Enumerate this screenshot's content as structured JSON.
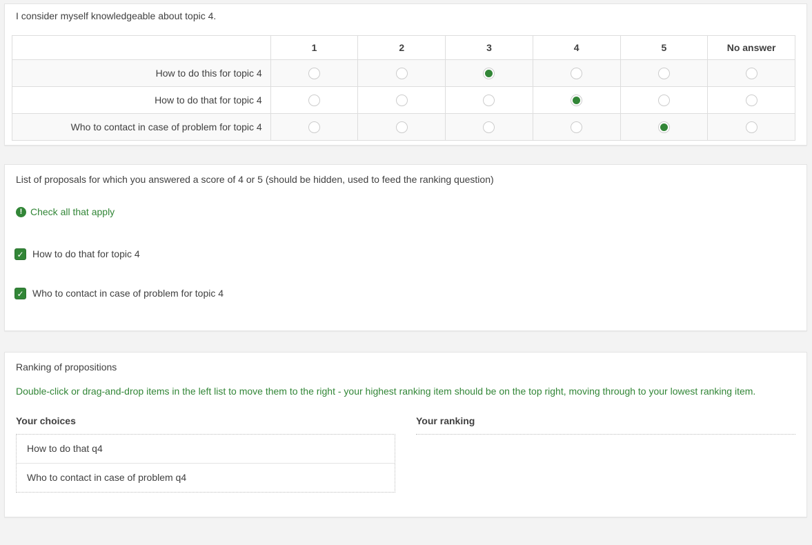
{
  "accent_color": "#328637",
  "icons": {
    "hint_icon": "exclamation-circle"
  },
  "question1": {
    "title": "I consider myself knowledgeable about topic 4.",
    "columns": [
      "1",
      "2",
      "3",
      "4",
      "5",
      "No answer"
    ],
    "rows": [
      {
        "label": "How to do this for topic 4",
        "selected": "3"
      },
      {
        "label": "How to do that for topic 4",
        "selected": "4"
      },
      {
        "label": "Who to contact in case of problem for topic 4",
        "selected": "5"
      }
    ]
  },
  "question2": {
    "title": "List of proposals for which you answered a score of 4 or 5 (should be hidden, used to feed the ranking question)",
    "hint": "Check all that apply",
    "options": [
      {
        "label": "How to do that for topic 4",
        "checked": true
      },
      {
        "label": "Who to contact in case of problem for topic 4",
        "checked": true
      }
    ]
  },
  "question3": {
    "title": "Ranking of propositions",
    "instructions": "Double-click or drag-and-drop items in the left list to move them to the right - your highest ranking item should be on the top right, moving through to your lowest ranking item.",
    "choices_label": "Your choices",
    "ranking_label": "Your ranking",
    "choices": [
      "How to do that q4",
      "Who to contact in case of problem q4"
    ],
    "ranking": []
  }
}
